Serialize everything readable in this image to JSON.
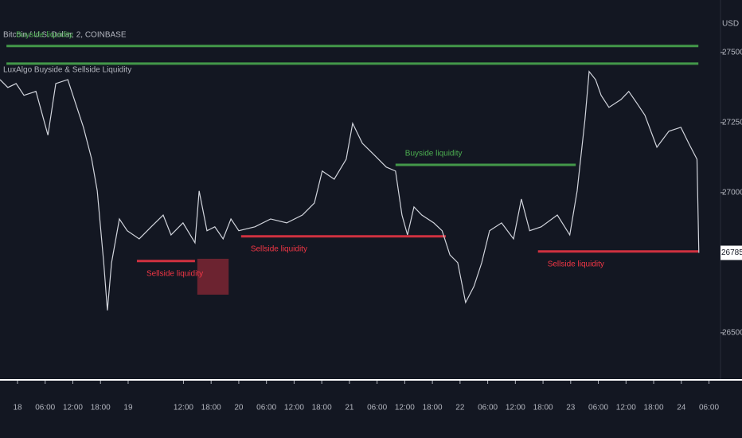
{
  "chart_data": {
    "type": "line",
    "title": "Bitcoin / U.S. Dollar, 2, COINBASE",
    "subtitle": "LuxAlgo Buyside & Sellside Liquidity",
    "y_axis_label": "USD",
    "line_color": "#d1d4dc",
    "buyside_color": "#4caf50",
    "sellside_color": "#f23645",
    "x": [
      -3.8,
      -2.1,
      -0.3,
      1.4,
      4.0,
      6.6,
      8.3,
      10.9,
      12.6,
      14.3,
      16.1,
      17.3,
      18.7,
      19.5,
      20.4,
      22.1,
      23.8,
      26.4,
      29.0,
      31.6,
      33.3,
      35.9,
      38.5,
      39.4,
      41.1,
      42.8,
      44.6,
      46.3,
      48.0,
      51.5,
      54.9,
      58.4,
      61.8,
      64.4,
      66.1,
      68.7,
      71.3,
      72.7,
      74.8,
      77.4,
      80.0,
      82.0,
      83.4,
      84.6,
      86.0,
      87.7,
      90.3,
      92.1,
      93.8,
      95.5,
      97.2,
      99.0,
      100.7,
      102.4,
      105.0,
      107.6,
      109.3,
      111.1,
      113.6,
      117.1,
      119.8,
      121.4,
      123.1,
      124.0,
      125.4,
      126.6,
      128.3,
      130.9,
      132.6,
      134.4,
      136.1,
      138.7,
      141.3,
      143.9,
      145.6,
      147.4,
      147.8
    ],
    "values": [
      27403,
      27375,
      27389,
      27347,
      27361,
      27205,
      27389,
      27403,
      27318,
      27233,
      27119,
      27006,
      26750,
      26580,
      26750,
      26906,
      26864,
      26835,
      26878,
      26920,
      26849,
      26892,
      26821,
      27006,
      26864,
      26878,
      26835,
      26906,
      26864,
      26878,
      26906,
      26892,
      26920,
      26963,
      27077,
      27048,
      27119,
      27247,
      27176,
      27134,
      27091,
      27077,
      26920,
      26849,
      26949,
      26920,
      26892,
      26864,
      26778,
      26750,
      26608,
      26665,
      26750,
      26864,
      26892,
      26835,
      26977,
      26864,
      26878,
      26920,
      26849,
      27006,
      27261,
      27432,
      27403,
      27347,
      27304,
      27332,
      27361,
      27318,
      27276,
      27162,
      27219,
      27233,
      27176,
      27119,
      26785.17
    ],
    "last_price": 26785.17,
    "xlim": [
      -3.8,
      152.5
    ],
    "ylim": [
      26352,
      27687
    ],
    "yticks": [
      {
        "value": 26500,
        "label": "26500.00"
      },
      {
        "value": 27000,
        "label": "27000.00"
      },
      {
        "value": 27250,
        "label": "27250.00"
      },
      {
        "value": 27500,
        "label": "27500.00"
      }
    ],
    "xticks": [
      {
        "value": 0,
        "label": "18"
      },
      {
        "value": 6,
        "label": "06:00"
      },
      {
        "value": 12,
        "label": "12:00"
      },
      {
        "value": 18,
        "label": "18:00"
      },
      {
        "value": 24,
        "label": "19"
      },
      {
        "value": 36,
        "label": "12:00"
      },
      {
        "value": 42,
        "label": "18:00"
      },
      {
        "value": 48,
        "label": "20"
      },
      {
        "value": 54,
        "label": "06:00"
      },
      {
        "value": 60,
        "label": "12:00"
      },
      {
        "value": 66,
        "label": "18:00"
      },
      {
        "value": 72,
        "label": "21"
      },
      {
        "value": 78,
        "label": "06:00"
      },
      {
        "value": 84,
        "label": "12:00"
      },
      {
        "value": 90,
        "label": "18:00"
      },
      {
        "value": 96,
        "label": "22"
      },
      {
        "value": 102,
        "label": "06:00"
      },
      {
        "value": 108,
        "label": "12:00"
      },
      {
        "value": 114,
        "label": "18:00"
      },
      {
        "value": 120,
        "label": "23"
      },
      {
        "value": 126,
        "label": "06:00"
      },
      {
        "value": 132,
        "label": "12:00"
      },
      {
        "value": 138,
        "label": "18:00"
      },
      {
        "value": 144,
        "label": "24"
      },
      {
        "value": 150,
        "label": "06:00"
      }
    ],
    "levels": [
      {
        "kind": "buyside",
        "value": 27523,
        "x": [
          -2.4,
          147.7
        ],
        "label": "Buyside liquidity"
      },
      {
        "kind": "buyside",
        "value": 27460,
        "x": [
          -2.4,
          147.7
        ]
      },
      {
        "kind": "buyside",
        "value": 27099,
        "x": [
          82.0,
          121.1
        ],
        "label": "Buyside liquidity"
      },
      {
        "kind": "sellside",
        "value": 26756,
        "x": [
          25.9,
          38.5
        ],
        "label": "Sellside liquidity"
      },
      {
        "kind": "sellside",
        "value": 26844,
        "x": [
          48.5,
          92.9
        ],
        "label": "Sellside liquidity"
      },
      {
        "kind": "sellside",
        "value": 26790,
        "x": [
          112.9,
          147.7
        ],
        "label": "Sellside liquidity"
      }
    ],
    "zones": [
      {
        "kind": "sellside",
        "x": [
          39.0,
          45.8
        ],
        "y": [
          26636,
          26764
        ]
      }
    ]
  }
}
